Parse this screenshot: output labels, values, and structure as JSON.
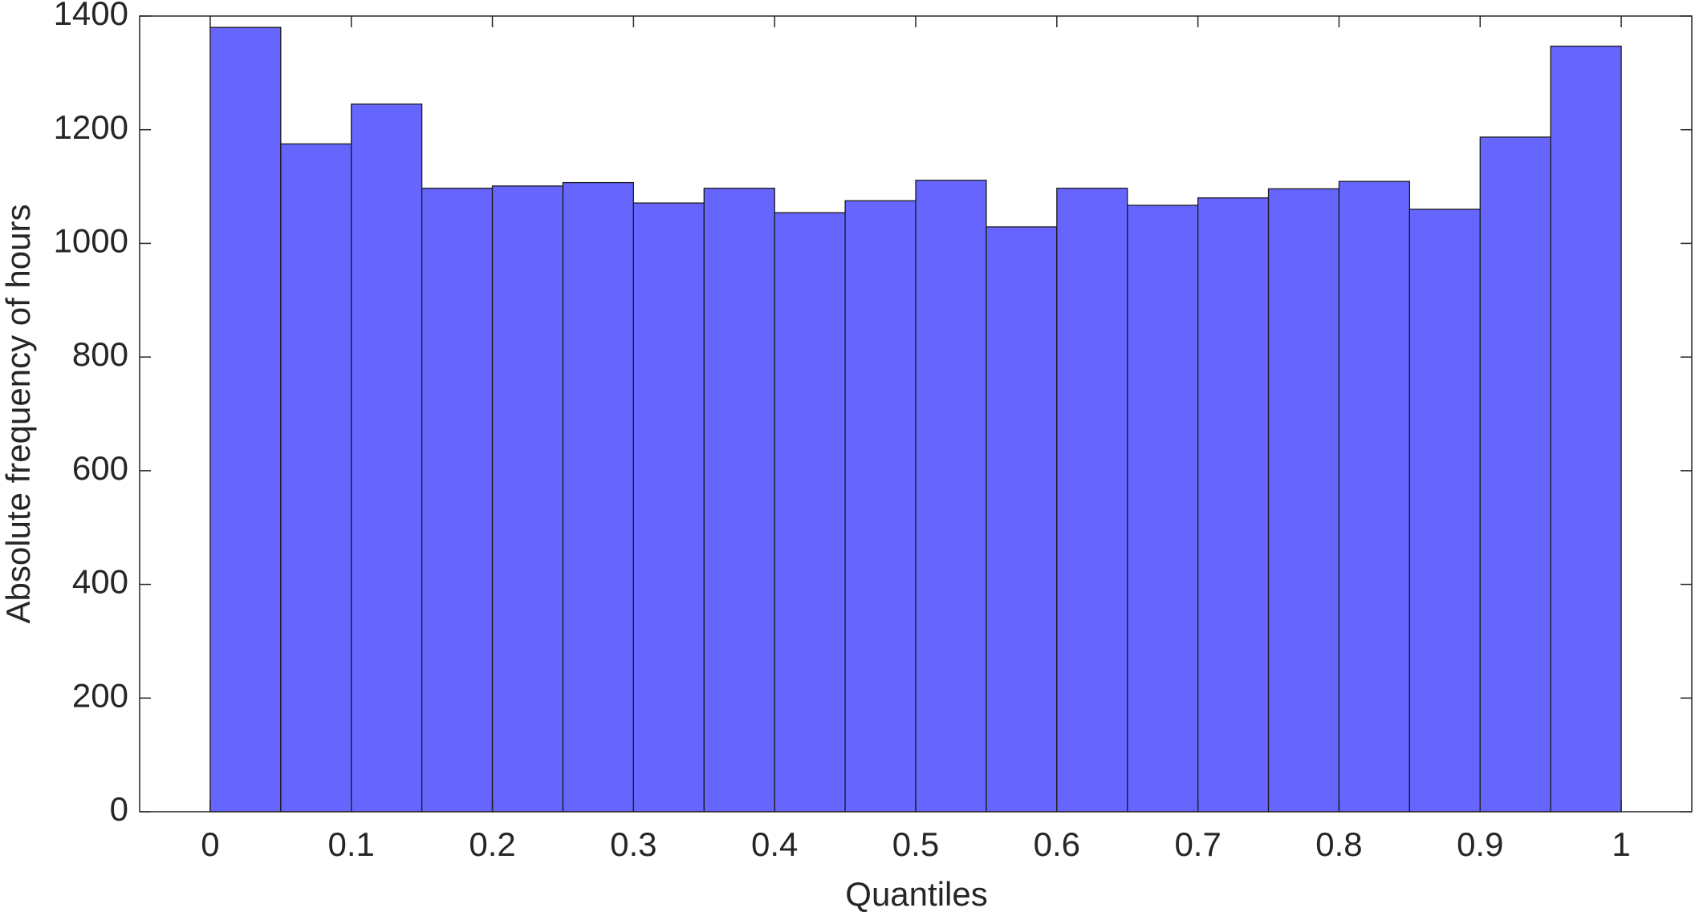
{
  "chart_data": {
    "type": "histogram",
    "xlabel": "Quantiles",
    "ylabel": "Absolute frequency of hours",
    "bins": [
      0,
      0.05,
      0.1,
      0.15,
      0.2,
      0.25,
      0.3,
      0.35,
      0.4,
      0.45,
      0.5,
      0.55,
      0.6,
      0.65,
      0.7,
      0.75,
      0.8,
      0.85,
      0.9,
      0.95,
      1
    ],
    "values": [
      1380,
      1175,
      1245,
      1097,
      1101,
      1107,
      1071,
      1097,
      1054,
      1075,
      1111,
      1029,
      1097,
      1067,
      1080,
      1096,
      1109,
      1060,
      1187,
      1347
    ],
    "color": "#6666ff",
    "xlim": [
      -0.05,
      1.05
    ],
    "xticks": [
      0,
      0.1,
      0.2,
      0.3,
      0.4,
      0.5,
      0.6,
      0.7,
      0.8,
      0.9,
      1
    ],
    "ylim": [
      0,
      1400
    ],
    "yticks": [
      0,
      200,
      400,
      600,
      800,
      1000,
      1200,
      1400
    ],
    "grid": false
  }
}
